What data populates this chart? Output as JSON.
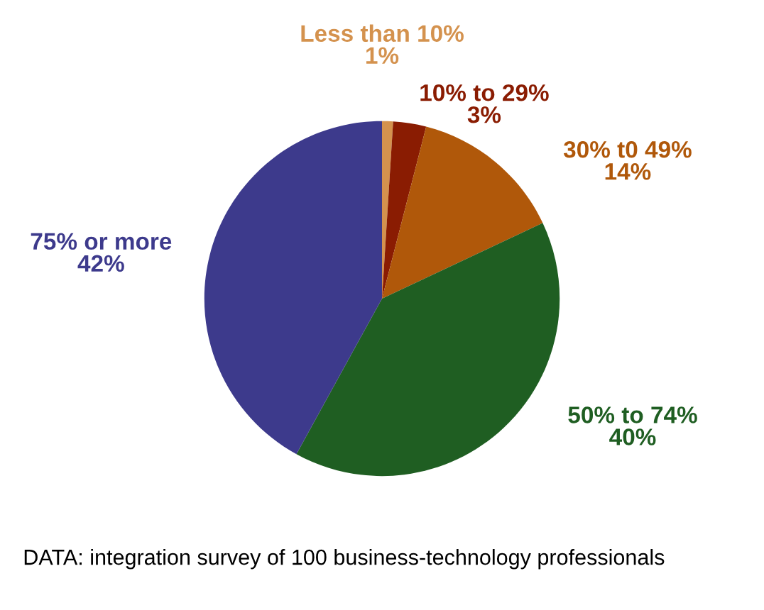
{
  "chart_data": {
    "type": "pie",
    "categories": [
      "Less than 10%",
      "10% to 29%",
      "30% t0 49%",
      "50% to 74%",
      "75% or more"
    ],
    "values": [
      1,
      3,
      14,
      40,
      42
    ],
    "value_labels": [
      "1%",
      "3%",
      "14%",
      "40%",
      "42%"
    ],
    "colors": [
      "#d4924e",
      "#8a1c02",
      "#b0580a",
      "#1f5e22",
      "#3d3a8c"
    ],
    "annotations": [
      "DATA: integration survey of 100 business-technology professionals"
    ]
  }
}
